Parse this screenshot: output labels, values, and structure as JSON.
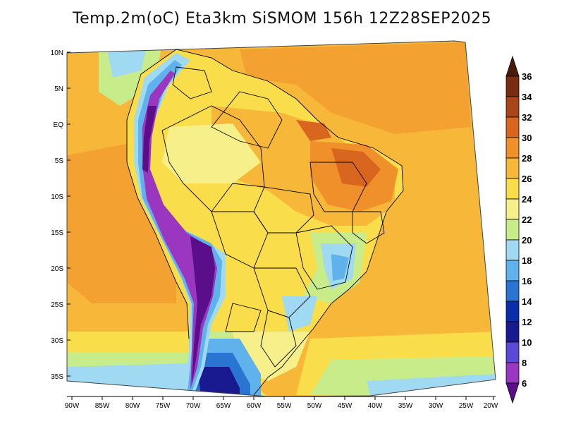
{
  "title": "Temp.2m(oC) Eta3km SiSMOM 156h 12Z28SEP2025",
  "axes": {
    "lat_labels": [
      "10N",
      "5N",
      "EQ",
      "5S",
      "10S",
      "15S",
      "20S",
      "25S",
      "30S",
      "35S"
    ],
    "lon_labels": [
      "90W",
      "85W",
      "80W",
      "75W",
      "70W",
      "65W",
      "60W",
      "55W",
      "50W",
      "45W",
      "40W",
      "35W",
      "30W",
      "25W",
      "20W"
    ]
  },
  "colorbar": {
    "labels": [
      "36",
      "34",
      "32",
      "30",
      "28",
      "26",
      "24",
      "22",
      "20",
      "18",
      "16",
      "14",
      "12",
      "10",
      "8",
      "6"
    ],
    "colors": [
      "#4a1a0a",
      "#7a2c10",
      "#a8461a",
      "#d9661e",
      "#f0902a",
      "#f7b83a",
      "#f9dd4a",
      "#f7f08a",
      "#c8ec8a",
      "#9fd9f2",
      "#5fb2ec",
      "#2a74d2",
      "#0a2ea8",
      "#1a1a90",
      "#5a4ad6",
      "#9a36c0",
      "#5a0e8a"
    ]
  }
}
